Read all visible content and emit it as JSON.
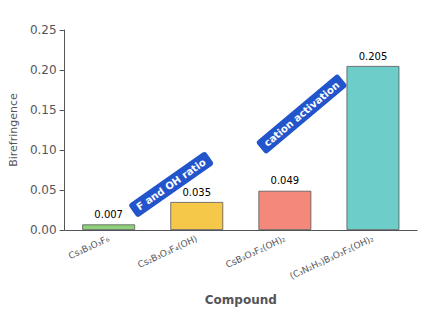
{
  "chart_data": {
    "type": "bar",
    "categories": [
      "Cs₃B₃O₃F₆",
      "Cs₂B₃O₃F₄(OH)",
      "CsB₃O₃F₂(OH)₂",
      "(C₃N₂H₅)B₃O₃F₂(OH)₂"
    ],
    "values": [
      0.007,
      0.035,
      0.049,
      0.205
    ],
    "value_labels": [
      "0.007",
      "0.035",
      "0.049",
      "0.205"
    ],
    "colors": [
      "#8FD17A",
      "#F5C84A",
      "#F4887B",
      "#6DCEC9"
    ],
    "xlabel": "Compound",
    "ylabel": "Birefringence",
    "ylim": [
      0,
      0.25
    ],
    "yticks": [
      {
        "value": 0,
        "label": "0.00"
      },
      {
        "value": 0.05,
        "label": "0.05"
      },
      {
        "value": 0.1,
        "label": "0.10"
      },
      {
        "value": 0.15,
        "label": "0.15"
      },
      {
        "value": 0.2,
        "label": "0.20"
      },
      {
        "value": 0.25,
        "label": "0.25"
      }
    ],
    "grid": false,
    "data_labels": true,
    "annotations": [
      "F and OH ratio",
      "cation activation"
    ]
  }
}
